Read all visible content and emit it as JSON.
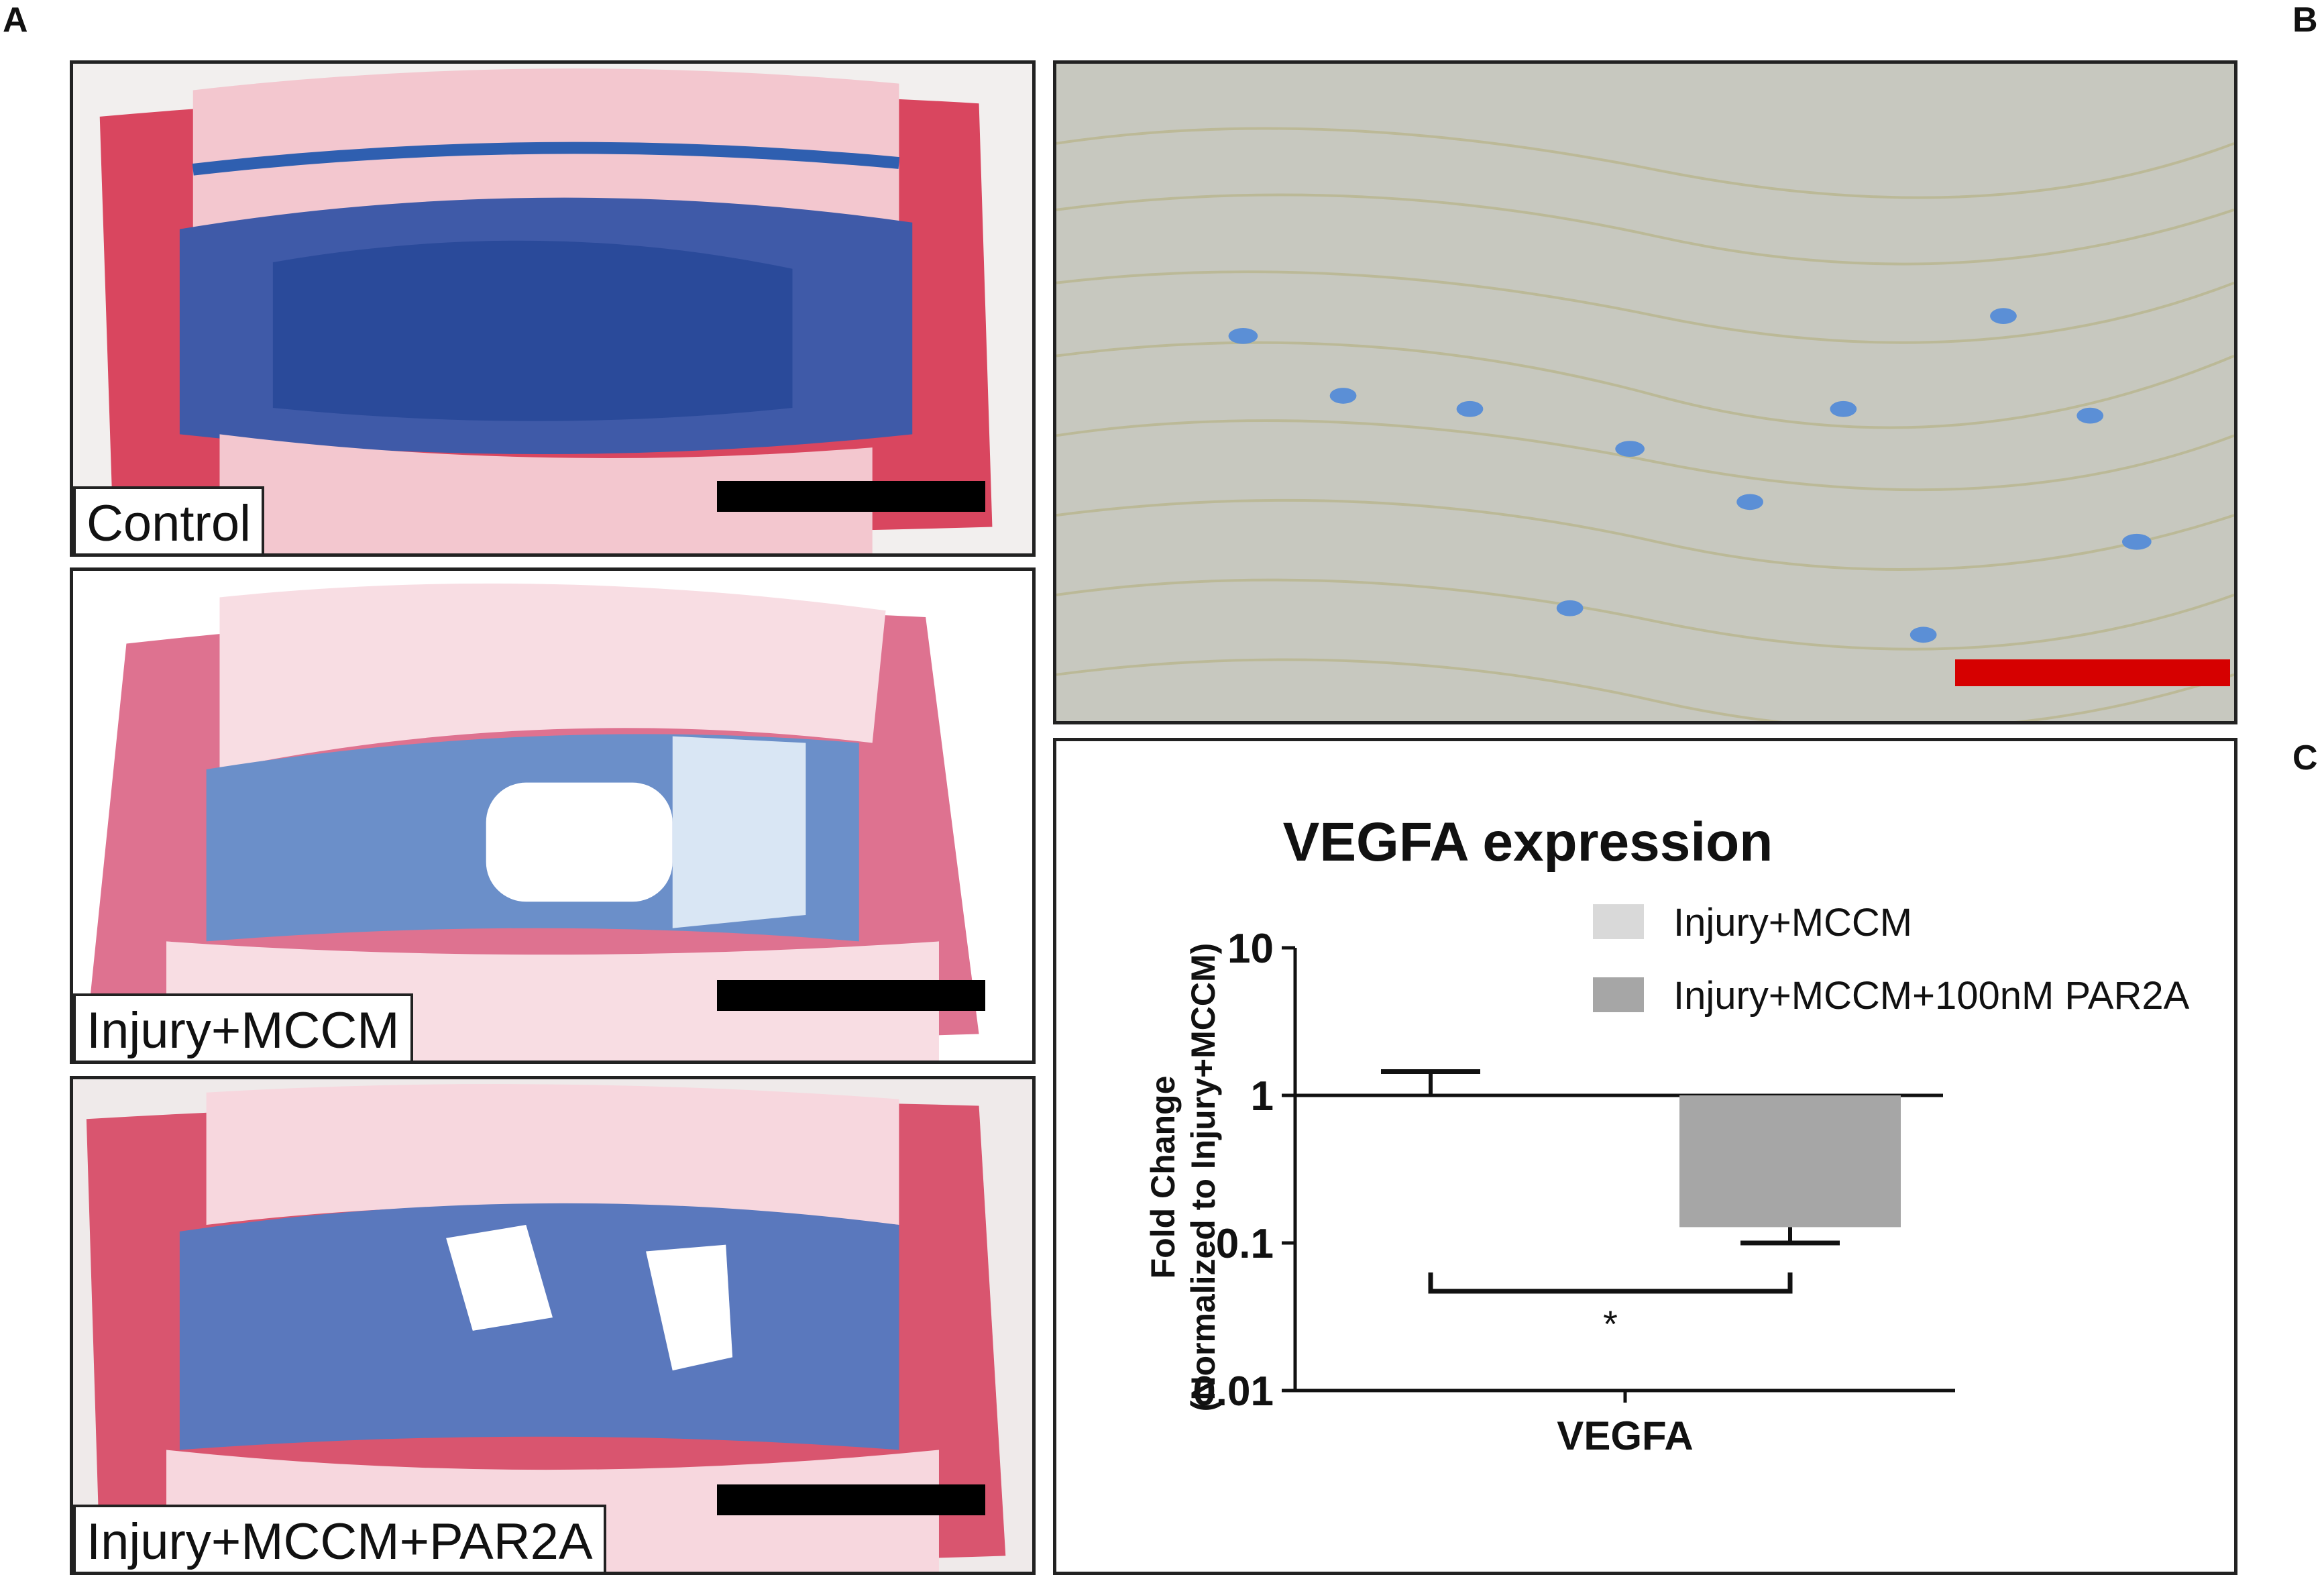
{
  "panel_letters": {
    "a": "A",
    "b": "B",
    "c": "C"
  },
  "panel_a": {
    "images": [
      {
        "label": "Control"
      },
      {
        "label": "Injury+MCCM"
      },
      {
        "label": "Injury+MCCM+PAR2A"
      }
    ],
    "scalebar_color": "#000000"
  },
  "panel_b": {
    "scalebar_color": "#d60000"
  },
  "chart_data": {
    "type": "bar",
    "title": "VEGFA expression",
    "ylabel_line1": "Fold Change",
    "ylabel_line2": "(Normalized to Injury+MCCM)",
    "xlabel": "VEGFA",
    "categories": [
      "VEGFA"
    ],
    "yscale": "log",
    "ylim": [
      0.01,
      10
    ],
    "ytick_labels": [
      "10",
      "1",
      "0.1",
      "0.01"
    ],
    "yticks": [
      10,
      1,
      0.1,
      0.01
    ],
    "series": [
      {
        "name": "Injury+MCCM",
        "value": 1.0,
        "error_upper": 1.45,
        "color": "#d9d9d9"
      },
      {
        "name": "Injury+MCCM+100nM PAR2A",
        "value": 0.128,
        "error_lower": 0.1,
        "color": "#a6a6a6"
      }
    ],
    "significance": "*"
  }
}
